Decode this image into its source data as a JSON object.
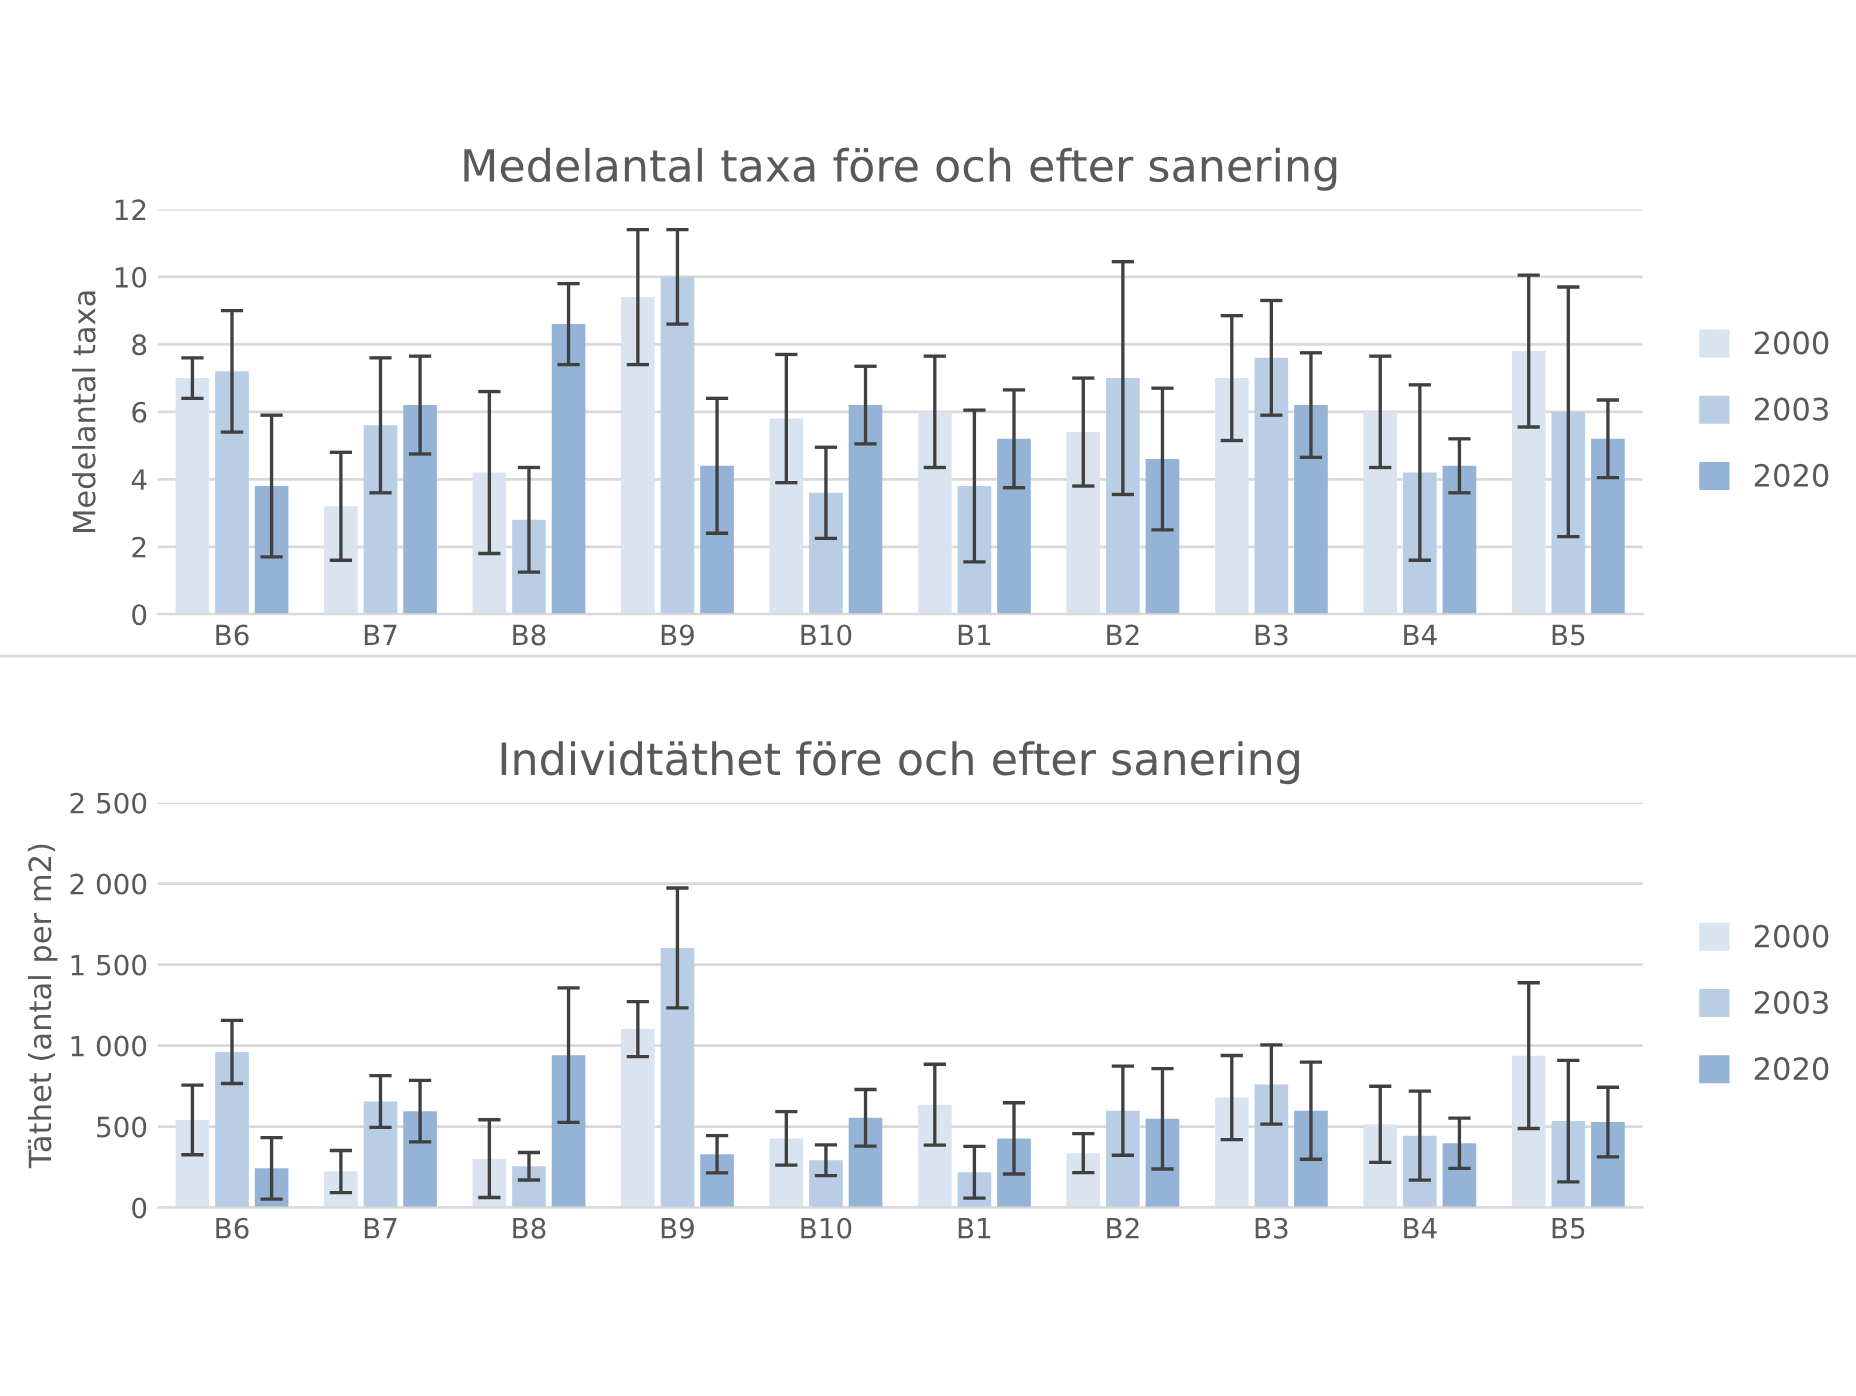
{
  "chart_data": [
    {
      "type": "bar",
      "title": "Medelantal taxa före och efter sanering",
      "ylabel": "Medelantal taxa",
      "categories": [
        "B6",
        "B7",
        "B8",
        "B9",
        "B10",
        "B1",
        "B2",
        "B3",
        "B4",
        "B5"
      ],
      "series": [
        {
          "name": "2000",
          "color": "#dae3f0",
          "values": [
            7.0,
            3.2,
            4.2,
            9.4,
            5.8,
            6.0,
            5.4,
            7.0,
            6.0,
            7.8
          ],
          "errors": [
            0.6,
            1.6,
            2.4,
            2.0,
            1.9,
            1.65,
            1.6,
            1.85,
            1.65,
            2.25
          ]
        },
        {
          "name": "2003",
          "color": "#b9cde5",
          "values": [
            7.2,
            5.6,
            2.8,
            10.0,
            3.6,
            3.8,
            7.0,
            7.6,
            4.2,
            6.0
          ],
          "errors": [
            1.8,
            2.0,
            1.55,
            1.4,
            1.35,
            2.25,
            3.45,
            1.7,
            2.6,
            3.7
          ]
        },
        {
          "name": "2020",
          "color": "#95b3d7",
          "values": [
            3.8,
            6.2,
            8.6,
            4.4,
            6.2,
            5.2,
            4.6,
            6.2,
            4.4,
            5.2
          ],
          "errors": [
            2.1,
            1.45,
            1.2,
            2.0,
            1.15,
            1.45,
            2.1,
            1.55,
            0.8,
            1.15
          ]
        }
      ],
      "ylim": [
        0,
        12
      ],
      "yticks": [
        0,
        2,
        4,
        6,
        8,
        10,
        12
      ],
      "grid": "y",
      "legend": "right"
    },
    {
      "type": "bar",
      "title": "Individtäthet före och efter sanering",
      "ylabel": "Täthet (antal per m2)",
      "categories": [
        "B6",
        "B7",
        "B8",
        "B9",
        "B10",
        "B1",
        "B2",
        "B3",
        "B4",
        "B5"
      ],
      "series": [
        {
          "name": "2000",
          "color": "#dae3f0",
          "values": [
            541,
            222,
            302,
            1102,
            427,
            635,
            336,
            679,
            514,
            938
          ],
          "errors": [
            215,
            130,
            240,
            170,
            165,
            250,
            120,
            260,
            235,
            450
          ]
        },
        {
          "name": "2003",
          "color": "#b9cde5",
          "values": [
            961,
            655,
            255,
            1603,
            292,
            218,
            598,
            760,
            444,
            534
          ],
          "errors": [
            195,
            160,
            85,
            370,
            95,
            160,
            275,
            245,
            275,
            375
          ]
        },
        {
          "name": "2020",
          "color": "#95b3d7",
          "values": [
            242,
            595,
            941,
            329,
            554,
            427,
            548,
            598,
            397,
            528
          ],
          "errors": [
            190,
            190,
            415,
            115,
            175,
            220,
            310,
            300,
            155,
            215
          ]
        }
      ],
      "ylim": [
        0,
        2500
      ],
      "yticks": [
        0,
        {
          "value": 500,
          "label": "500"
        },
        {
          "value": 1000,
          "label": "1 000"
        },
        {
          "value": 1500,
          "label": "1 500"
        },
        {
          "value": 2000,
          "label": "2 000"
        },
        {
          "value": 2500,
          "label": "2 500"
        }
      ],
      "grid": "y",
      "legend": "right"
    }
  ]
}
